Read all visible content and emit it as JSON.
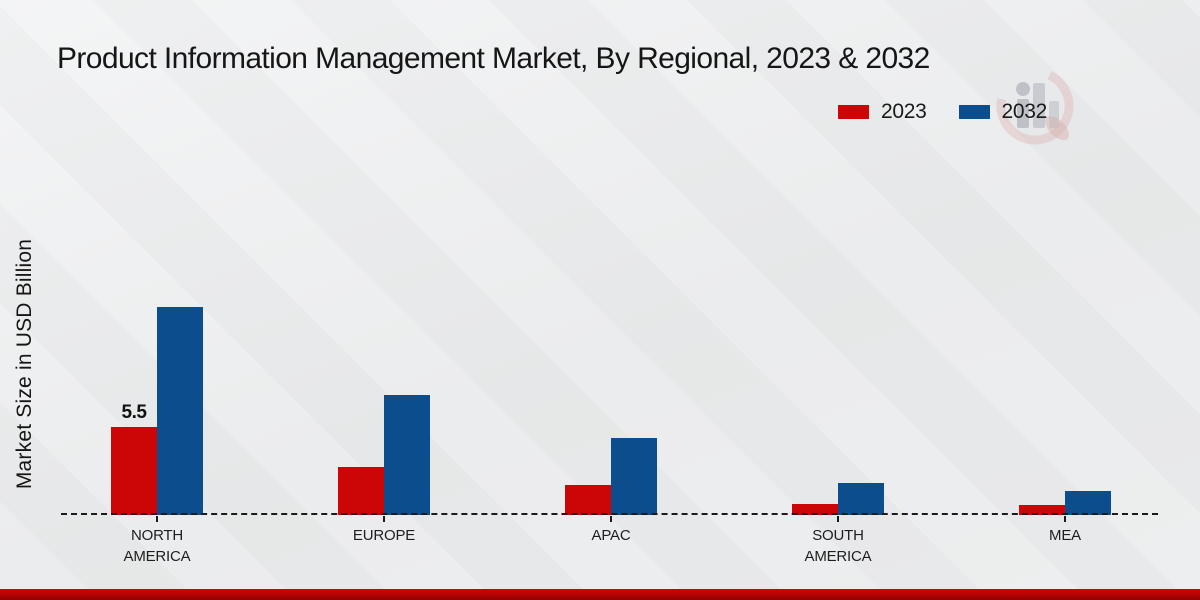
{
  "title": {
    "text": "Product Information Management Market, By Regional, 2023 & 2032"
  },
  "y_axis": {
    "label": "Market Size in USD Billion"
  },
  "legend": {
    "position": "top-right",
    "items": [
      {
        "label": "2023",
        "color": "#cc0606"
      },
      {
        "label": "2032",
        "color": "#0c4d8e"
      }
    ]
  },
  "watermark": {
    "name": "market-research-future-logo"
  },
  "footer": {
    "bar_color": "#c40404"
  },
  "chart_data": {
    "type": "bar",
    "title": "Product Information Management Market, By Regional, 2023 & 2032",
    "xlabel": "",
    "ylabel": "Market Size in USD Billion",
    "unit": "USD Billion",
    "categories": [
      "NORTH AMERICA",
      "EUROPE",
      "APAC",
      "SOUTH AMERICA",
      "MEA"
    ],
    "series": [
      {
        "name": "2023",
        "color": "#cc0606",
        "values": [
          5.5,
          3.0,
          1.9,
          0.7,
          0.6
        ]
      },
      {
        "name": "2032",
        "color": "#0c4d8e",
        "values": [
          13.0,
          7.5,
          4.8,
          2.0,
          1.5
        ]
      }
    ],
    "bar_labels": [
      {
        "category_index": 0,
        "series_index": 0,
        "text": "5.5"
      }
    ],
    "ylim": [
      0,
      14
    ],
    "grid": false,
    "baseline_style": "dashed",
    "legend_position": "top-right"
  }
}
